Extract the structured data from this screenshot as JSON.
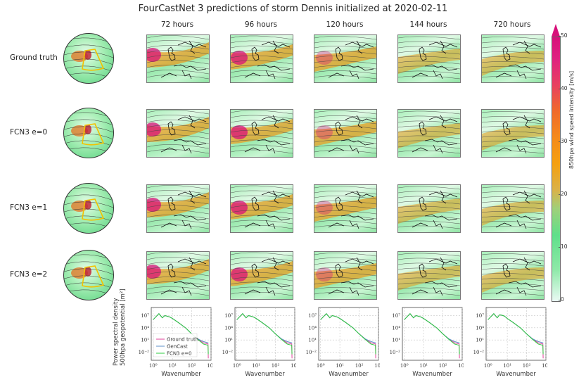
{
  "figure": {
    "title": "FourCastNet 3 predictions of storm Dennis initialized at 2020-02-11",
    "column_titles": [
      "72 hours",
      "96 hours",
      "120 hours",
      "144 hours",
      "720 hours"
    ],
    "row_labels": [
      "Ground truth",
      "FCN3 e=0",
      "FCN3 e=1",
      "FCN3 e=2"
    ],
    "colorbar": {
      "label": "850hpa wind speed intensity [m/s]",
      "ticks": [
        "0",
        "10",
        "20",
        "30",
        "40",
        "50"
      ],
      "range": [
        0,
        50
      ],
      "extend": "max",
      "colors": [
        "#eafaf4",
        "#5fe08a",
        "#f5a010",
        "#f06a2a",
        "#d8107a"
      ]
    },
    "contour_labels_sample": [
      "49200",
      "51600",
      "52800",
      "54000",
      "56400",
      "57000",
      "58400"
    ]
  },
  "chart_data": [
    {
      "type": "heatmap",
      "title": "FourCastNet 3 predictions of storm Dennis initialized at 2020-02-11",
      "rows": [
        "Ground truth",
        "FCN3 e=0",
        "FCN3 e=1",
        "FCN3 e=2"
      ],
      "columns": [
        "72 hours",
        "96 hours",
        "120 hours",
        "144 hours",
        "720 hours"
      ],
      "variable": "850hpa wind speed intensity [m/s]",
      "vmin": 0,
      "vmax": 50
    },
    {
      "type": "line",
      "panel": "72 hours",
      "xlabel": "Wavenumber",
      "ylabel": "Power spectral density 500hpa geopotential [m^2]",
      "xscale": "log",
      "yscale": "log",
      "xlim": [
        0.8,
        1000
      ],
      "ylim": [
        0.0001,
        1000000000.0
      ],
      "xticks": [
        "10^0",
        "10^1",
        "10^2",
        "10^3"
      ],
      "yticks": [
        "10^-2",
        "10^1",
        "10^4",
        "10^7"
      ],
      "grid": true,
      "legend": "lower-left",
      "x": [
        1,
        2,
        3,
        4,
        5,
        7,
        10,
        20,
        50,
        100,
        200,
        400,
        700,
        720
      ],
      "series": [
        {
          "name": "Ground truth",
          "color": "#e0409a",
          "values": [
            1000000.0,
            30000000.0,
            3000000.0,
            10000000.0,
            8000000.0,
            5000000.0,
            2000000.0,
            200000.0,
            8000.0,
            300.0,
            20.0,
            2,
            1,
            0.0003
          ]
        },
        {
          "name": "GenCast",
          "color": "#5b8fc9",
          "values": [
            1000000.0,
            30000000.0,
            3000000.0,
            10000000.0,
            8000000.0,
            5000000.0,
            2000000.0,
            200000.0,
            8000.0,
            300.0,
            20.0,
            4,
            2,
            1.5
          ]
        },
        {
          "name": "FCN3 e=0",
          "color": "#2ecc40",
          "values": [
            1000000.0,
            30000000.0,
            3000000.0,
            10000000.0,
            8000000.0,
            5000000.0,
            2000000.0,
            200000.0,
            8000.0,
            300.0,
            15.0,
            1,
            0.5,
            0.003
          ]
        }
      ]
    },
    {
      "type": "line",
      "panel": "96 hours",
      "xlabel": "Wavenumber",
      "xscale": "log",
      "yscale": "log",
      "same_series_as": "72 hours"
    },
    {
      "type": "line",
      "panel": "120 hours",
      "xlabel": "Wavenumber",
      "xscale": "log",
      "yscale": "log",
      "same_series_as": "72 hours"
    },
    {
      "type": "line",
      "panel": "144 hours",
      "xlabel": "Wavenumber",
      "xscale": "log",
      "yscale": "log",
      "same_series_as": "72 hours"
    },
    {
      "type": "line",
      "panel": "720 hours",
      "xlabel": "Wavenumber",
      "xscale": "log",
      "yscale": "log",
      "same_series_as": "72 hours"
    }
  ],
  "psd": {
    "xlabel": "Wavenumber",
    "ylabel_line1": "Power spectral density",
    "ylabel_line2": "500hpa geopotential [m²]",
    "xticks": [
      "10⁰",
      "10¹",
      "10²",
      "10³"
    ],
    "yticks": [
      "10⁷",
      "10⁴",
      "10¹",
      "10⁻²"
    ],
    "legend": [
      "Ground truth",
      "GenCast",
      "FCN3 e=0"
    ],
    "colors": {
      "Ground truth": "#e0409a",
      "GenCast": "#5b8fc9",
      "FCN3 e=0": "#2ecc40"
    }
  }
}
